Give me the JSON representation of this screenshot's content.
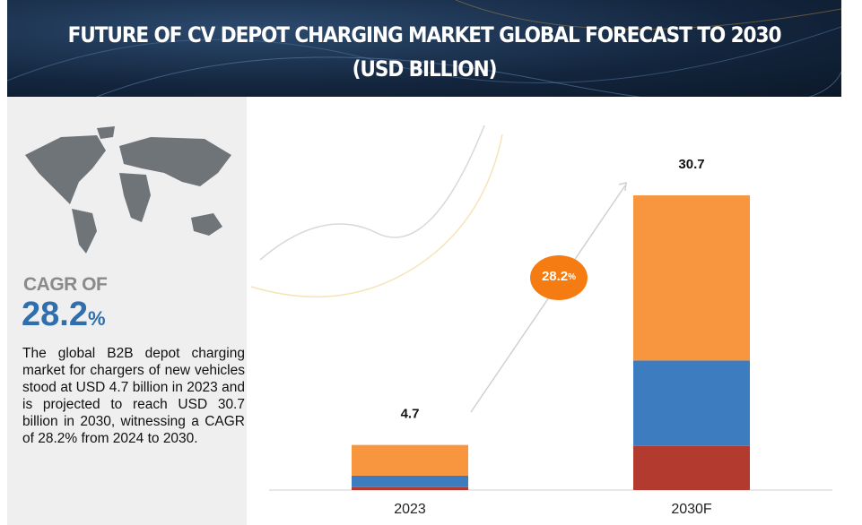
{
  "header": {
    "title": "FUTURE OF CV DEPOT CHARGING MARKET GLOBAL FORECAST TO 2030 (USD BILLION)"
  },
  "sidebar": {
    "label": "CAGR OF",
    "value": 28.2,
    "unit": "%",
    "text": "The global B2B depot charging market for chargers of new vehicles stood at USD 4.7 billion in 2023 and is projected to reach USD 30.7 billion in 2030, witnessing a CAGR of 28.2% from 2024 to 2030."
  },
  "chart_data": {
    "type": "stacked_bar",
    "categories": [
      "2023",
      "2030F"
    ],
    "series": [
      {
        "color": "#b23a2e",
        "values": [
          0.3,
          4.6
        ]
      },
      {
        "color": "#3d7cbf",
        "values": [
          1.2,
          8.9
        ]
      },
      {
        "color": "#f7963f",
        "values": [
          3.2,
          17.2
        ]
      }
    ],
    "totals": [
      4.7,
      30.7
    ],
    "annotation": {
      "value": 28.2,
      "unit": "%",
      "color": "#f57c12"
    },
    "ylim": [
      0,
      35
    ]
  }
}
